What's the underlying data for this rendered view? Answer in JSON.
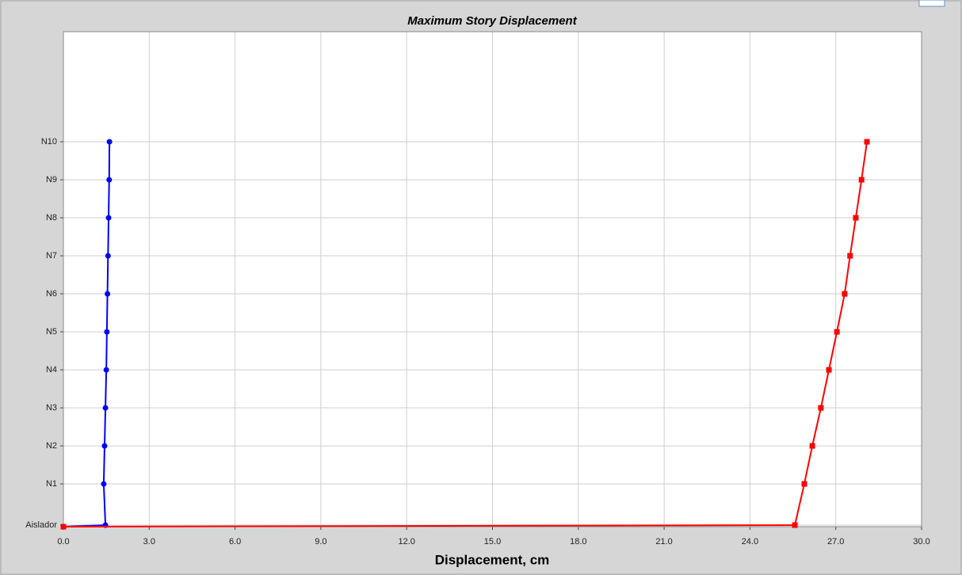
{
  "chart_data": {
    "type": "line",
    "title": "Maximum Story Displacement",
    "x_label": "Displacement, cm",
    "categories": [
      null,
      "Aislador",
      "N1",
      "N2",
      "N3",
      "N4",
      "N5",
      "N6",
      "N7",
      "N8",
      "N9",
      "N10"
    ],
    "series": [
      {
        "color": "#0000ff",
        "marker": "circle",
        "values": [
          0,
          1.47,
          1.41,
          1.44,
          1.47,
          1.5,
          1.52,
          1.54,
          1.56,
          1.58,
          1.6,
          1.61
        ]
      },
      {
        "color": "#ff0000",
        "marker": "square",
        "values": [
          0,
          25.57,
          25.9,
          26.18,
          26.48,
          26.76,
          27.04,
          27.31,
          27.5,
          27.7,
          27.9,
          28.09
        ]
      }
    ],
    "xlim": [
      0,
      30
    ],
    "xticks": [
      {
        "value": 0,
        "label": "0.0"
      },
      {
        "value": 3,
        "label": "3.0"
      },
      {
        "value": 6,
        "label": "6.0"
      },
      {
        "value": 9,
        "label": "9.0"
      },
      {
        "value": 12,
        "label": "12.0"
      },
      {
        "value": 15,
        "label": "15.0"
      },
      {
        "value": 18,
        "label": "18.0"
      },
      {
        "value": 21,
        "label": "21.0"
      },
      {
        "value": 24,
        "label": "24.0"
      },
      {
        "value": 27,
        "label": "27.0"
      },
      {
        "value": 30,
        "label": "30.0"
      }
    ],
    "grid": true
  }
}
